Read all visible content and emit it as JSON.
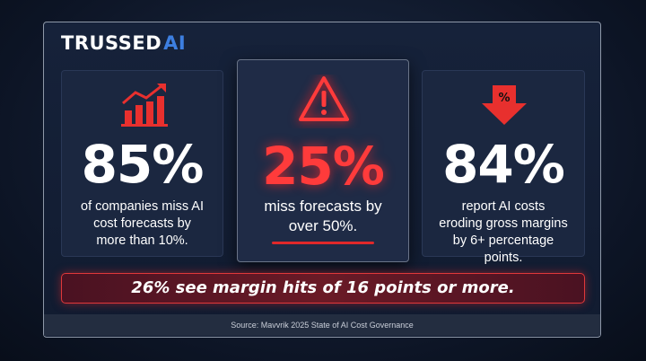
{
  "brand": {
    "name": "TRUSSED",
    "mark": "AI"
  },
  "cards": [
    {
      "stat": "85%",
      "text": "of companies miss AI cost forecasts by more than 10%."
    },
    {
      "stat": "25%",
      "text": "miss forecasts by over 50%."
    },
    {
      "stat": "84%",
      "text": "report AI costs eroding gross margins by 6+ percentage points.",
      "icon_label": "%"
    }
  ],
  "banner": "26% see margin hits of 16 points or more.",
  "source": "Source: Mavvrik 2025 State of AI Cost Governance"
}
